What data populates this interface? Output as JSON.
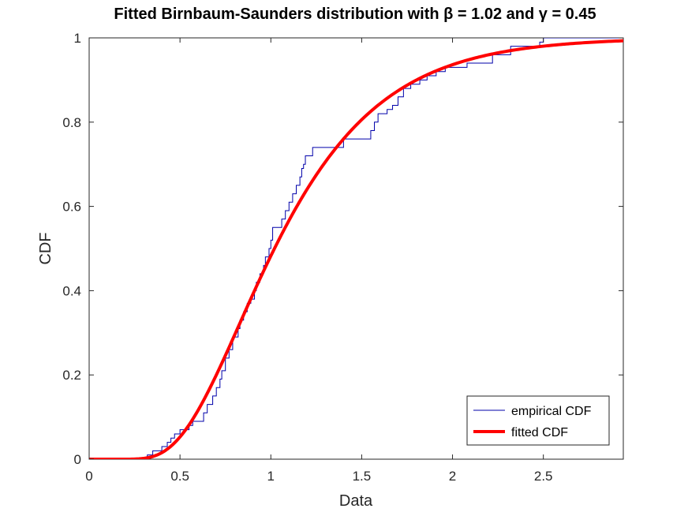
{
  "chart_data": {
    "type": "line",
    "title": "Fitted Birnbaum-Saunders distribution with β = 1.02 and γ = 0.45",
    "xlabel": "Data",
    "ylabel": "CDF",
    "xlim": [
      0,
      2.94
    ],
    "ylim": [
      0,
      1
    ],
    "xticks": [
      "0",
      "0.5",
      "1",
      "1.5",
      "2",
      "2.5"
    ],
    "yticks": [
      "0",
      "0.2",
      "0.4",
      "0.6",
      "0.8",
      "1"
    ],
    "grid": false,
    "legend_position": "bottom-right",
    "colors": {
      "empirical": "#0000aa",
      "fitted": "#ff0000"
    },
    "series": [
      {
        "name": "empirical CDF",
        "kind": "step",
        "points": [
          [
            0,
            0
          ],
          [
            0.32,
            0
          ],
          [
            0.32,
            0.01
          ],
          [
            0.35,
            0.01
          ],
          [
            0.35,
            0.02
          ],
          [
            0.4,
            0.02
          ],
          [
            0.4,
            0.03
          ],
          [
            0.43,
            0.03
          ],
          [
            0.43,
            0.04
          ],
          [
            0.45,
            0.04
          ],
          [
            0.45,
            0.05
          ],
          [
            0.47,
            0.05
          ],
          [
            0.47,
            0.06
          ],
          [
            0.5,
            0.06
          ],
          [
            0.5,
            0.07
          ],
          [
            0.55,
            0.07
          ],
          [
            0.55,
            0.08
          ],
          [
            0.57,
            0.08
          ],
          [
            0.57,
            0.09
          ],
          [
            0.63,
            0.09
          ],
          [
            0.63,
            0.11
          ],
          [
            0.65,
            0.11
          ],
          [
            0.65,
            0.13
          ],
          [
            0.68,
            0.13
          ],
          [
            0.68,
            0.15
          ],
          [
            0.7,
            0.15
          ],
          [
            0.7,
            0.17
          ],
          [
            0.72,
            0.17
          ],
          [
            0.72,
            0.19
          ],
          [
            0.73,
            0.19
          ],
          [
            0.73,
            0.21
          ],
          [
            0.75,
            0.21
          ],
          [
            0.75,
            0.24
          ],
          [
            0.77,
            0.24
          ],
          [
            0.77,
            0.26
          ],
          [
            0.79,
            0.26
          ],
          [
            0.79,
            0.29
          ],
          [
            0.82,
            0.29
          ],
          [
            0.82,
            0.31
          ],
          [
            0.83,
            0.31
          ],
          [
            0.83,
            0.33
          ],
          [
            0.85,
            0.33
          ],
          [
            0.85,
            0.35
          ],
          [
            0.87,
            0.35
          ],
          [
            0.87,
            0.37
          ],
          [
            0.89,
            0.37
          ],
          [
            0.89,
            0.38
          ],
          [
            0.91,
            0.38
          ],
          [
            0.91,
            0.4
          ],
          [
            0.92,
            0.4
          ],
          [
            0.92,
            0.42
          ],
          [
            0.94,
            0.42
          ],
          [
            0.94,
            0.44
          ],
          [
            0.96,
            0.44
          ],
          [
            0.96,
            0.46
          ],
          [
            0.97,
            0.46
          ],
          [
            0.97,
            0.48
          ],
          [
            0.99,
            0.48
          ],
          [
            0.99,
            0.5
          ],
          [
            1.0,
            0.5
          ],
          [
            1.0,
            0.52
          ],
          [
            1.01,
            0.52
          ],
          [
            1.01,
            0.55
          ],
          [
            1.06,
            0.55
          ],
          [
            1.06,
            0.57
          ],
          [
            1.08,
            0.57
          ],
          [
            1.08,
            0.59
          ],
          [
            1.1,
            0.59
          ],
          [
            1.1,
            0.61
          ],
          [
            1.12,
            0.61
          ],
          [
            1.12,
            0.63
          ],
          [
            1.14,
            0.63
          ],
          [
            1.14,
            0.65
          ],
          [
            1.16,
            0.65
          ],
          [
            1.16,
            0.67
          ],
          [
            1.17,
            0.67
          ],
          [
            1.17,
            0.69
          ],
          [
            1.18,
            0.69
          ],
          [
            1.18,
            0.7
          ],
          [
            1.19,
            0.7
          ],
          [
            1.19,
            0.72
          ],
          [
            1.23,
            0.72
          ],
          [
            1.23,
            0.74
          ],
          [
            1.4,
            0.74
          ],
          [
            1.4,
            0.76
          ],
          [
            1.55,
            0.76
          ],
          [
            1.55,
            0.78
          ],
          [
            1.57,
            0.78
          ],
          [
            1.57,
            0.8
          ],
          [
            1.59,
            0.8
          ],
          [
            1.59,
            0.82
          ],
          [
            1.64,
            0.82
          ],
          [
            1.64,
            0.83
          ],
          [
            1.67,
            0.83
          ],
          [
            1.67,
            0.84
          ],
          [
            1.7,
            0.84
          ],
          [
            1.7,
            0.86
          ],
          [
            1.73,
            0.86
          ],
          [
            1.73,
            0.88
          ],
          [
            1.77,
            0.88
          ],
          [
            1.77,
            0.89
          ],
          [
            1.82,
            0.89
          ],
          [
            1.82,
            0.9
          ],
          [
            1.86,
            0.9
          ],
          [
            1.86,
            0.91
          ],
          [
            1.91,
            0.91
          ],
          [
            1.91,
            0.92
          ],
          [
            1.96,
            0.92
          ],
          [
            1.96,
            0.93
          ],
          [
            2.08,
            0.93
          ],
          [
            2.08,
            0.94
          ],
          [
            2.22,
            0.94
          ],
          [
            2.22,
            0.96
          ],
          [
            2.32,
            0.96
          ],
          [
            2.32,
            0.98
          ],
          [
            2.48,
            0.98
          ],
          [
            2.48,
            0.99
          ],
          [
            2.5,
            0.99
          ],
          [
            2.5,
            1.0
          ],
          [
            2.94,
            1.0
          ]
        ]
      },
      {
        "name": "fitted CDF",
        "kind": "birnbaum-saunders",
        "beta": 1.02,
        "gamma": 0.45
      }
    ]
  }
}
